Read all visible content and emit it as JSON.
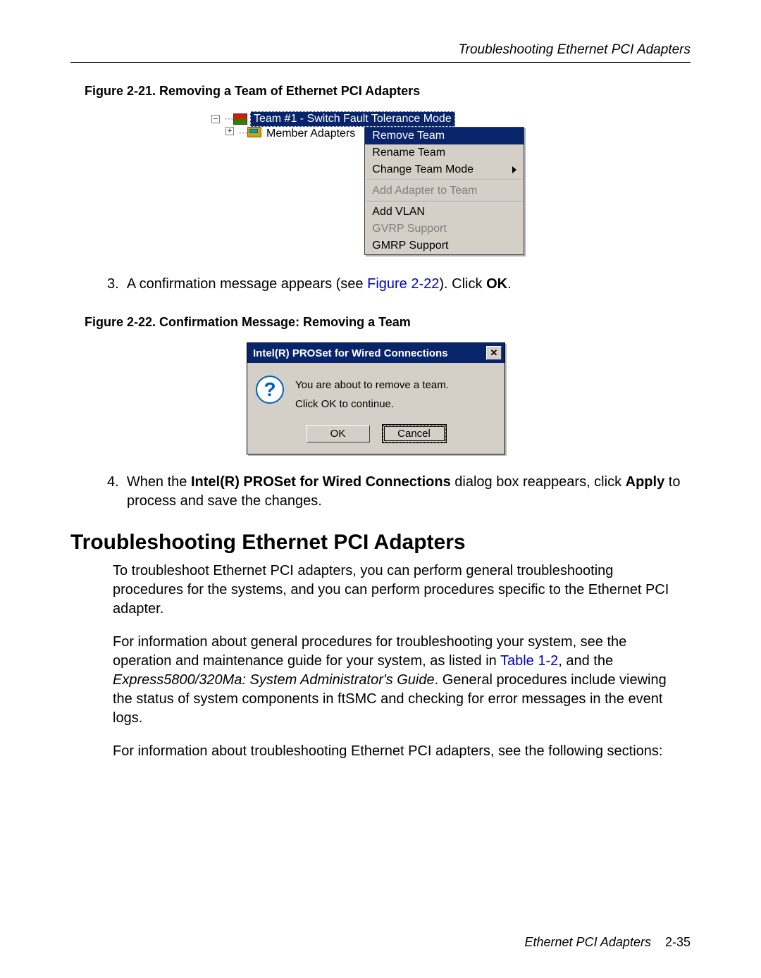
{
  "header": {
    "title": "Troubleshooting Ethernet PCI Adapters"
  },
  "figure1": {
    "caption": "Figure 2-21. Removing a Team of Ethernet PCI Adapters",
    "tree": {
      "root_label": "Team #1 - Switch Fault Tolerance Mode",
      "child_label": "Member Adapters"
    },
    "menu": {
      "items": [
        {
          "label": "Remove Team",
          "selected": true
        },
        {
          "label": "Rename Team"
        },
        {
          "label": "Change Team Mode",
          "submenu": true
        }
      ],
      "group2": [
        {
          "label": "Add Adapter to Team",
          "disabled": true
        }
      ],
      "group3": [
        {
          "label": "Add VLAN"
        },
        {
          "label": "GVRP Support",
          "disabled": true
        },
        {
          "label": "GMRP Support"
        }
      ]
    },
    "colors": {
      "highlight_bg": "#08246b",
      "highlight_fg": "#ffffff",
      "menu_bg": "#d4d0c8",
      "disabled_fg": "#808080",
      "border": "#404040"
    }
  },
  "step3": {
    "num": "3.",
    "text_a": "A confirmation message appears (see ",
    "link": "Figure 2-22",
    "text_b": "). Click ",
    "bold": "OK",
    "text_c": "."
  },
  "figure2": {
    "caption": "Figure 2-22. Confirmation Message: Removing a Team",
    "dialog": {
      "title": "Intel(R) PROSet for Wired Connections",
      "line1": "You are about to remove a team.",
      "line2": "Click OK to continue.",
      "ok": "OK",
      "cancel": "Cancel"
    }
  },
  "step4": {
    "num": "4.",
    "text_a": "When the ",
    "bold1": "Intel(R) PROSet for Wired Connections",
    "text_b": " dialog box reappears, click ",
    "bold2": "Apply",
    "text_c": " to process and save the changes."
  },
  "section": {
    "heading": "Troubleshooting Ethernet PCI Adapters",
    "p1": "To troubleshoot Ethernet PCI adapters, you can perform general troubleshooting procedures for the systems, and you can perform procedures specific to the Ethernet PCI adapter.",
    "p2a": "For information about general procedures for troubleshooting your system, see the operation and maintenance guide for your system, as listed in ",
    "p2_link": "Table 1-2",
    "p2b": ", and the ",
    "p2_italic": "Express5800/320Ma: System Administrator's Guide",
    "p2c": ". General procedures include viewing the status of system components in ftSMC and checking for error messages in the event logs.",
    "p3": "For information about troubleshooting Ethernet PCI adapters, see the following sections:"
  },
  "footer": {
    "doc": "Ethernet PCI Adapters",
    "page": "2-35"
  }
}
